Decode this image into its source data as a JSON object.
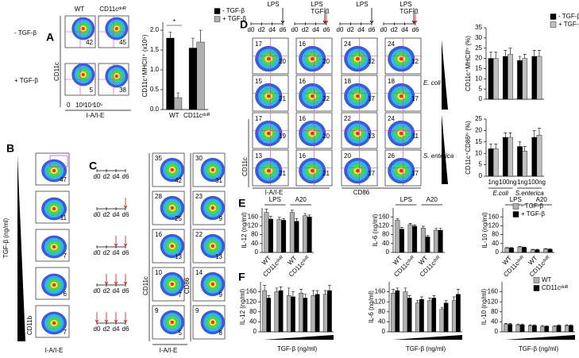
{
  "panel_a": {
    "label": "A",
    "columns": [
      "WT",
      "CD11cᵈⁿᴿ"
    ],
    "rows": [
      "- TGF-β",
      "+ TGF-β"
    ],
    "y_axis": "CD11c",
    "x_axis": "I-A/I-E",
    "percentages": [
      [
        42,
        45
      ],
      [
        5,
        38
      ]
    ]
  },
  "flow_ticks": [
    "0",
    "10³",
    "10⁴",
    "10⁵"
  ],
  "panel_b": {
    "label": "B",
    "y_label": "TGF-β (ng/ml)",
    "y_axis": "CD11b",
    "x_axis": "I-A/I-E",
    "percentages": [
      47,
      11,
      7,
      6,
      7
    ]
  },
  "panel_c": {
    "label": "C",
    "days": [
      "d0",
      "d2",
      "d4",
      "d6"
    ],
    "plots_1": {
      "y_axis": "CD11c",
      "x_axis": "I-A/I-E",
      "top_left": [
        35,
        28,
        16,
        10,
        9
      ],
      "bottom_right": [
        42,
        25,
        13,
        7,
        5
      ]
    },
    "plots_2": {
      "y_axis": "CD86",
      "top_left": [
        30,
        23,
        22,
        14,
        9
      ],
      "bottom_right": [
        31,
        9,
        13,
        9,
        8
      ]
    }
  },
  "panel_d": {
    "label": "D",
    "days": [
      "d0",
      "d2",
      "d4",
      "d6"
    ],
    "timelines": [
      [
        {
          "text": "LPS",
          "color": "#000000"
        }
      ],
      [
        {
          "text": "LPS",
          "color": "#000000"
        },
        {
          "text": "TGF-β",
          "color": "#d01010"
        }
      ],
      [
        {
          "text": "LPS",
          "color": "#000000"
        }
      ],
      [
        {
          "text": "LPS",
          "color": "#000000"
        },
        {
          "text": "TGF-β",
          "color": "#d01010"
        }
      ]
    ],
    "plots": [
      [
        [
          17,
          20
        ],
        [
          16,
          20
        ],
        [
          24,
          12
        ],
        [
          24,
          12
        ]
      ],
      [
        [
          15,
          21
        ],
        [
          16,
          22
        ],
        [
          18,
          17
        ],
        [
          18,
          17
        ]
      ],
      [
        [
          17,
          19
        ],
        [
          16,
          20
        ],
        [
          22,
          13
        ],
        [
          24,
          11
        ]
      ],
      [
        [
          13,
          21
        ],
        [
          16,
          21
        ],
        [
          20,
          17
        ],
        [
          26,
          17
        ]
      ]
    ],
    "bacteria": [
      "E. coli",
      "S. enterica"
    ],
    "y_axis": "CD11c",
    "x_axis_1": "I-A/I-E",
    "x_axis_2": "CD86"
  },
  "panel_e": {
    "label": "E"
  },
  "panel_f": {
    "label": "F"
  },
  "chart_data": [
    {
      "type": "bar",
      "ylabel": "CD11c⁺MHCII⁺ (x10⁵)",
      "categories": [
        "WT",
        "CD11cᵈⁿᴿ"
      ],
      "series": [
        {
          "name": "- TGF-β",
          "color": "#000000",
          "values": [
            1.8,
            1.55
          ],
          "errors": [
            0.15,
            0.25
          ]
        },
        {
          "name": "+ TGF-β",
          "color": "#b0b0b0",
          "values": [
            0.3,
            1.7
          ],
          "errors": [
            0.12,
            0.3
          ]
        }
      ],
      "ylim": [
        0,
        2.2
      ],
      "yticks": [
        {
          "value": 0,
          "label": "0.0"
        },
        0.5,
        {
          "value": 1,
          "label": "1.0"
        },
        1.5,
        {
          "value": 2,
          "label": "2.0"
        }
      ],
      "annotation": "*",
      "legend": "right"
    },
    {
      "type": "bar",
      "ylabel": "CD11c⁺MHCIIʰⁱ (%)",
      "categories": [
        null,
        null,
        null,
        null
      ],
      "series": [
        {
          "name": "- TGF-β",
          "color": "#000000",
          "values": [
            20,
            21,
            19,
            21
          ],
          "errors": [
            3,
            3,
            2,
            3
          ]
        },
        {
          "name": "+ TGF-β",
          "color": "#c0c0c0",
          "values": [
            20,
            22,
            20,
            21
          ],
          "errors": [
            3,
            3,
            2,
            3
          ]
        }
      ],
      "ylim": [
        0,
        35
      ],
      "yticks": [
        0,
        5,
        10,
        15,
        20,
        25,
        30,
        35
      ],
      "legend": "right"
    },
    {
      "type": "bar",
      "ylabel": "CD11c⁺CD86ʰⁱ (%)",
      "categories": [
        "1ng",
        "100ng",
        "1ng",
        "100ng"
      ],
      "groups": [
        "E.coli",
        "S.enterica"
      ],
      "series": [
        {
          "color": "#000000",
          "values": [
            12,
            17,
            13,
            17
          ],
          "errors": [
            2,
            2,
            2,
            3
          ]
        },
        {
          "color": "#c0c0c0",
          "values": [
            12,
            17,
            11,
            18
          ],
          "errors": [
            2,
            2,
            2,
            3
          ]
        }
      ],
      "ylim": [
        0,
        25
      ],
      "yticks": [
        0,
        5,
        10,
        15,
        20,
        25
      ]
    },
    {
      "type": "bar",
      "ylabel": "IL-12 (ng/ml)",
      "categories": [
        "WT",
        "CD11cᵈⁿᴿ",
        "WT",
        "CD11cᵈⁿᴿ"
      ],
      "groups": [
        "LPS",
        "A20"
      ],
      "series": [
        {
          "color": "#b0b0b0",
          "values": [
            180,
            148,
            180,
            165
          ],
          "errors": [
            15,
            10,
            10,
            10
          ]
        },
        {
          "color": "#000000",
          "values": [
            150,
            145,
            140,
            160
          ],
          "errors": [
            12,
            8,
            12,
            8
          ]
        }
      ],
      "ylim": [
        0,
        200
      ],
      "yticks": [
        0,
        40,
        80,
        120,
        160
      ]
    },
    {
      "type": "bar",
      "ylabel": "IL-6 (ng/ml)",
      "categories": [
        "WT",
        "CD11cᵈⁿᴿ",
        "WT",
        "CD11cᵈⁿᴿ"
      ],
      "groups": [
        "LPS",
        "A20"
      ],
      "series": [
        {
          "color": "#b0b0b0",
          "values": [
            145,
            125,
            110,
            100
          ],
          "errors": [
            8,
            6,
            8,
            8
          ]
        },
        {
          "color": "#000000",
          "values": [
            105,
            118,
            70,
            100
          ],
          "errors": [
            8,
            6,
            6,
            8
          ]
        }
      ],
      "ylim": [
        0,
        200
      ],
      "yticks": [
        0,
        40,
        80,
        120,
        160
      ]
    },
    {
      "type": "bar",
      "ylabel": "IL-10 (ng/ml)",
      "categories": [
        "WT",
        "CD11cᵈⁿᴿ",
        "WT",
        "CD11cᵈⁿᴿ"
      ],
      "groups": [
        "LPS",
        "A20"
      ],
      "series": [
        {
          "name": "- TGF-β",
          "color": "#b0b0b0",
          "values": [
            20,
            25,
            12,
            15
          ],
          "errors": [
            2,
            2,
            2,
            2
          ]
        },
        {
          "name": "+ TGF-β",
          "color": "#000000",
          "values": [
            20,
            22,
            12,
            14
          ],
          "errors": [
            2,
            2,
            2,
            2
          ]
        }
      ],
      "ylim": [
        0,
        200
      ],
      "yticks": [
        0,
        40,
        80,
        120,
        160
      ],
      "legend": "upper right"
    },
    {
      "type": "bar",
      "ylabel": "IL-12 (ng/ml)",
      "xlabel": "TGF-β (ng/ml)",
      "categories": [
        null,
        null,
        null,
        null,
        null,
        null
      ],
      "series": [
        {
          "color": "#b0b0b0",
          "values": [
            165,
            160,
            145,
            155,
            145,
            150
          ],
          "errors": [
            20,
            15,
            30,
            15,
            20,
            15
          ]
        },
        {
          "color": "#000000",
          "values": [
            135,
            165,
            140,
            135,
            150,
            165
          ],
          "errors": [
            10,
            15,
            20,
            15,
            15,
            20
          ]
        }
      ],
      "ylim": [
        0,
        200
      ],
      "yticks": [
        0,
        40,
        80,
        120,
        160
      ]
    },
    {
      "type": "bar",
      "ylabel": "IL-6 (ng/ml)",
      "xlabel": "TGF-β (ng/ml)",
      "categories": [
        null,
        null,
        null,
        null,
        null,
        null
      ],
      "series": [
        {
          "color": "#b0b0b0",
          "values": [
            155,
            160,
            115,
            125,
            90,
            125
          ],
          "errors": [
            15,
            15,
            10,
            10,
            8,
            15
          ]
        },
        {
          "color": "#000000",
          "values": [
            165,
            135,
            130,
            135,
            115,
            150
          ],
          "errors": [
            10,
            10,
            10,
            10,
            10,
            20
          ]
        }
      ],
      "ylim": [
        0,
        200
      ],
      "yticks": [
        0,
        40,
        80,
        120,
        160
      ]
    },
    {
      "type": "bar",
      "ylabel": "IL-10 (ng/ml)",
      "xlabel": "TGF-β (ng/ml)",
      "categories": [
        null,
        null,
        null,
        null,
        null,
        null
      ],
      "series": [
        {
          "name": "WT",
          "color": "#b0b0b0",
          "values": [
            30,
            28,
            25,
            22,
            22,
            25
          ],
          "errors": [
            4,
            3,
            3,
            3,
            3,
            3
          ]
        },
        {
          "name": "CD11cᵈⁿᴿ",
          "color": "#000000",
          "values": [
            30,
            28,
            25,
            22,
            25,
            25
          ],
          "errors": [
            4,
            3,
            3,
            3,
            3,
            3
          ]
        }
      ],
      "ylim": [
        0,
        200
      ],
      "yticks": [
        0,
        40,
        80,
        120,
        160
      ],
      "legend": "upper right"
    }
  ]
}
